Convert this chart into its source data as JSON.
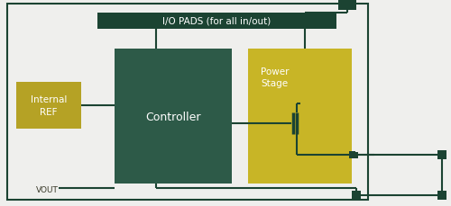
{
  "bg_color": "#efefed",
  "dark_green": "#1b4332",
  "mid_green": "#2d5a48",
  "olive": "#b5a225",
  "light_olive": "#c8b526",
  "text_white": "#ffffff",
  "text_dark": "#3a3a2a",
  "io_pads_label": "I/O PADS (for all in/out)",
  "controller_label": "Controller",
  "power_stage_label": "Power\nStage",
  "internal_ref_label": "Internal\nREF",
  "vout_label": "VOUT"
}
